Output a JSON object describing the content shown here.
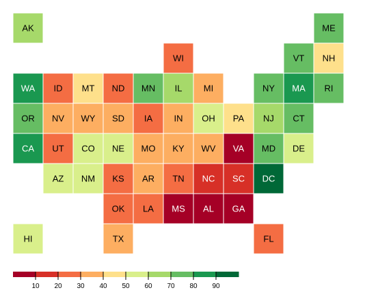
{
  "chart_data": {
    "type": "tile-grid-map",
    "title": "",
    "scale": {
      "min": 0,
      "max": 100,
      "ticks": [
        10,
        20,
        30,
        40,
        50,
        60,
        70,
        80,
        90
      ]
    },
    "palette": [
      "#a50026",
      "#d73027",
      "#f46d43",
      "#fdae61",
      "#fee08b",
      "#d9ef8b",
      "#a6d96a",
      "#66bd63",
      "#1a9850",
      "#006837"
    ],
    "states": [
      {
        "abbr": "AK",
        "col": 0,
        "row": 0,
        "value": 65
      },
      {
        "abbr": "ME",
        "col": 10,
        "row": 0,
        "value": 75
      },
      {
        "abbr": "WI",
        "col": 5,
        "row": 1,
        "value": 25
      },
      {
        "abbr": "VT",
        "col": 9,
        "row": 1,
        "value": 75
      },
      {
        "abbr": "NH",
        "col": 10,
        "row": 1,
        "value": 45
      },
      {
        "abbr": "WA",
        "col": 0,
        "row": 2,
        "value": 85
      },
      {
        "abbr": "ID",
        "col": 1,
        "row": 2,
        "value": 25
      },
      {
        "abbr": "MT",
        "col": 2,
        "row": 2,
        "value": 45
      },
      {
        "abbr": "ND",
        "col": 3,
        "row": 2,
        "value": 25
      },
      {
        "abbr": "MN",
        "col": 4,
        "row": 2,
        "value": 75
      },
      {
        "abbr": "IL",
        "col": 5,
        "row": 2,
        "value": 65
      },
      {
        "abbr": "MI",
        "col": 6,
        "row": 2,
        "value": 35
      },
      {
        "abbr": "NY",
        "col": 8,
        "row": 2,
        "value": 75
      },
      {
        "abbr": "MA",
        "col": 9,
        "row": 2,
        "value": 85
      },
      {
        "abbr": "RI",
        "col": 10,
        "row": 2,
        "value": 75
      },
      {
        "abbr": "OR",
        "col": 0,
        "row": 3,
        "value": 75
      },
      {
        "abbr": "NV",
        "col": 1,
        "row": 3,
        "value": 35
      },
      {
        "abbr": "WY",
        "col": 2,
        "row": 3,
        "value": 35
      },
      {
        "abbr": "SD",
        "col": 3,
        "row": 3,
        "value": 35
      },
      {
        "abbr": "IA",
        "col": 4,
        "row": 3,
        "value": 25
      },
      {
        "abbr": "IN",
        "col": 5,
        "row": 3,
        "value": 35
      },
      {
        "abbr": "OH",
        "col": 6,
        "row": 3,
        "value": 55
      },
      {
        "abbr": "PA",
        "col": 7,
        "row": 3,
        "value": 45
      },
      {
        "abbr": "NJ",
        "col": 8,
        "row": 3,
        "value": 65
      },
      {
        "abbr": "CT",
        "col": 9,
        "row": 3,
        "value": 75
      },
      {
        "abbr": "CA",
        "col": 0,
        "row": 4,
        "value": 85
      },
      {
        "abbr": "UT",
        "col": 1,
        "row": 4,
        "value": 25
      },
      {
        "abbr": "CO",
        "col": 2,
        "row": 4,
        "value": 55
      },
      {
        "abbr": "NE",
        "col": 3,
        "row": 4,
        "value": 55
      },
      {
        "abbr": "MO",
        "col": 4,
        "row": 4,
        "value": 35
      },
      {
        "abbr": "KY",
        "col": 5,
        "row": 4,
        "value": 35
      },
      {
        "abbr": "WV",
        "col": 6,
        "row": 4,
        "value": 35
      },
      {
        "abbr": "VA",
        "col": 7,
        "row": 4,
        "value": 5
      },
      {
        "abbr": "MD",
        "col": 8,
        "row": 4,
        "value": 75
      },
      {
        "abbr": "DE",
        "col": 9,
        "row": 4,
        "value": 55
      },
      {
        "abbr": "AZ",
        "col": 1,
        "row": 5,
        "value": 55
      },
      {
        "abbr": "NM",
        "col": 2,
        "row": 5,
        "value": 55
      },
      {
        "abbr": "KS",
        "col": 3,
        "row": 5,
        "value": 25
      },
      {
        "abbr": "AR",
        "col": 4,
        "row": 5,
        "value": 35
      },
      {
        "abbr": "TN",
        "col": 5,
        "row": 5,
        "value": 25
      },
      {
        "abbr": "NC",
        "col": 6,
        "row": 5,
        "value": 15
      },
      {
        "abbr": "SC",
        "col": 7,
        "row": 5,
        "value": 15
      },
      {
        "abbr": "DC",
        "col": 8,
        "row": 5,
        "value": 95
      },
      {
        "abbr": "OK",
        "col": 3,
        "row": 6,
        "value": 25
      },
      {
        "abbr": "LA",
        "col": 4,
        "row": 6,
        "value": 25
      },
      {
        "abbr": "MS",
        "col": 5,
        "row": 6,
        "value": 5
      },
      {
        "abbr": "AL",
        "col": 6,
        "row": 6,
        "value": 5
      },
      {
        "abbr": "GA",
        "col": 7,
        "row": 6,
        "value": 5
      },
      {
        "abbr": "HI",
        "col": 0,
        "row": 7,
        "value": 55
      },
      {
        "abbr": "TX",
        "col": 3,
        "row": 7,
        "value": 35
      },
      {
        "abbr": "FL",
        "col": 8,
        "row": 7,
        "value": 25
      }
    ]
  }
}
